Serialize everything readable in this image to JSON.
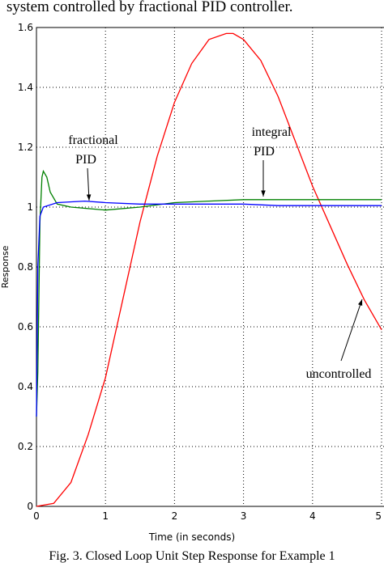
{
  "header": {
    "text": "system controlled by fractional PID controller."
  },
  "chart_data": {
    "type": "line",
    "xlabel": "Time (in seconds)",
    "ylabel": "Response",
    "caption": "Fig. 3. Closed Loop Unit Step Response for Example 1",
    "xlim": [
      0,
      5
    ],
    "ylim": [
      0,
      1.6
    ],
    "xticks": [
      0,
      1,
      2,
      3,
      4,
      5
    ],
    "yticks": [
      0,
      0.2,
      0.4,
      0.6,
      0.8,
      1,
      1.2,
      1.4,
      1.6
    ],
    "grid": true,
    "series": [
      {
        "color": "#ff0000",
        "x": [
          0,
          0.25,
          0.5,
          0.75,
          1,
          1.25,
          1.5,
          1.75,
          2,
          2.25,
          2.5,
          2.75,
          2.85,
          3,
          3.25,
          3.5,
          3.75,
          4,
          4.25,
          4.5,
          4.75,
          5
        ],
        "values": [
          0,
          0.01,
          0.08,
          0.24,
          0.43,
          0.69,
          0.95,
          1.17,
          1.35,
          1.48,
          1.56,
          1.58,
          1.58,
          1.56,
          1.49,
          1.37,
          1.22,
          1.07,
          0.94,
          0.81,
          0.69,
          0.59
        ]
      },
      {
        "color": "#008000",
        "x": [
          0,
          0.02,
          0.05,
          0.08,
          0.1,
          0.15,
          0.2,
          0.3,
          0.5,
          1,
          1.5,
          2,
          2.5,
          3,
          4,
          5
        ],
        "values": [
          0.3,
          0.45,
          0.95,
          1.1,
          1.12,
          1.1,
          1.05,
          1.01,
          1.0,
          0.99,
          1.0,
          1.015,
          1.02,
          1.025,
          1.025,
          1.025
        ]
      },
      {
        "color": "#0000ff",
        "x": [
          0,
          0.02,
          0.05,
          0.1,
          0.3,
          0.7,
          1,
          1.5,
          2,
          3,
          3.5,
          4,
          5
        ],
        "values": [
          0.3,
          0.8,
          0.97,
          1.0,
          1.015,
          1.02,
          1.015,
          1.01,
          1.01,
          1.01,
          1.005,
          1.005,
          1.005
        ]
      }
    ],
    "annotations": [
      [
        "fractional",
        "PID"
      ],
      [
        "integral",
        "PID"
      ],
      [
        "uncontrolled"
      ]
    ]
  }
}
